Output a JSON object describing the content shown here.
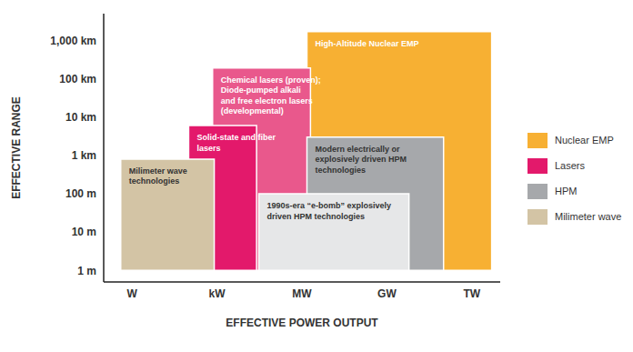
{
  "chart_data": {
    "type": "box",
    "x_label": "EFFECTIVE POWER OUTPUT",
    "y_label": "EFFECTIVE RANGE",
    "log": true,
    "legend": "right",
    "xlim": [
      0.1,
      10000000000000
    ],
    "xticks": [
      {
        "value": 1,
        "label": "W"
      },
      {
        "value": 1000,
        "label": "kW"
      },
      {
        "value": 1000000,
        "label": "MW"
      },
      {
        "value": 1000000000,
        "label": "GW"
      },
      {
        "value": 1000000000000,
        "label": "TW"
      }
    ],
    "ylim": [
      0.5,
      5000000
    ],
    "yticks": [
      {
        "value": 1,
        "label": "1 m"
      },
      {
        "value": 10,
        "label": "10 m"
      },
      {
        "value": 100,
        "label": "100 m"
      },
      {
        "value": 1000,
        "label": "1 km"
      },
      {
        "value": 10000,
        "label": "10 km"
      },
      {
        "value": 100000,
        "label": "100 km"
      },
      {
        "value": 1000000,
        "label": "1,000 km"
      }
    ],
    "series": [
      {
        "name": "Nuclear EMP",
        "color": "#f7b033"
      },
      {
        "name": "Lasers",
        "color": "#e3196b"
      },
      {
        "name": "HPM",
        "color": "#a6a8ab"
      },
      {
        "name": "Milimeter wave",
        "color": "#d3c4a5"
      }
    ],
    "boxes": [
      {
        "label": [
          "High-Altitude Nuclear EMP"
        ],
        "series": "Nuclear EMP",
        "x": [
          1500000,
          5000000000000
        ],
        "y": [
          1,
          1700000
        ]
      },
      {
        "label": [
          "Chemical lasers (proven);",
          "Diode-pumped alkali",
          "and free electron lasers",
          "(developmental)"
        ],
        "series": "Lasers",
        "color": "#e9588c",
        "x": [
          700,
          2000000
        ],
        "y": [
          1,
          190000
        ]
      },
      {
        "label": [
          "Solid-state and fiber",
          "lasers"
        ],
        "series": "Lasers",
        "x": [
          100,
          25000
        ],
        "y": [
          1,
          6000
        ]
      },
      {
        "label": [
          "Milimeter wave",
          "technologies"
        ],
        "series": "Milimeter wave",
        "x": [
          0.4,
          800
        ],
        "y": [
          1,
          800
        ]
      },
      {
        "label": [
          "Modern electrically or",
          "explosively driven HPM",
          "technologies"
        ],
        "series": "HPM",
        "x": [
          1500000,
          100000000000
        ],
        "y": [
          1,
          3000
        ]
      },
      {
        "label": [
          "1990s-era “e-bomb” explosively",
          "driven HPM technologies"
        ],
        "series": "HPM",
        "color": "#e6e7e8",
        "x": [
          30000,
          6000000000
        ],
        "y": [
          1,
          100
        ]
      }
    ]
  }
}
